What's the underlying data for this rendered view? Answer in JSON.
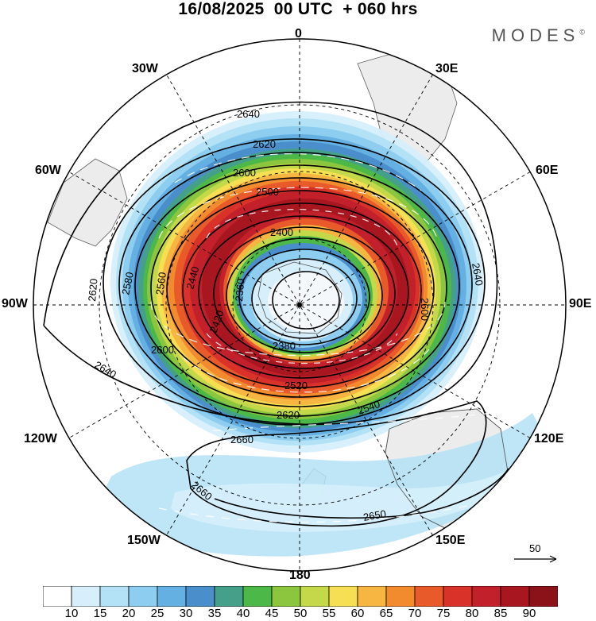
{
  "title": "16/08/2025  00 UTC  + 060 hrs",
  "brand": "MODES",
  "brand_mark": "©",
  "longitude_labels": {
    "lon_0": "0",
    "lon_30e": "30E",
    "lon_60e": "60E",
    "lon_90e": "90E",
    "lon_120e": "120E",
    "lon_150e": "150E",
    "lon_180": "180",
    "lon_150w": "150W",
    "lon_120w": "120W",
    "lon_90w": "90W",
    "lon_60w": "60W",
    "lon_30w": "30W"
  },
  "contour_labels": [
    "2640",
    "2620",
    "2600",
    "2580",
    "2560",
    "2540",
    "2520",
    "2500",
    "2440",
    "2420",
    "2400",
    "2380",
    "2360",
    "2660",
    "2650"
  ],
  "vector_reference": {
    "value": "50"
  },
  "colorbar": {
    "labels": [
      "10",
      "15",
      "20",
      "25",
      "30",
      "35",
      "40",
      "45",
      "50",
      "55",
      "60",
      "65",
      "70",
      "75",
      "80",
      "85",
      "90"
    ],
    "colors": [
      "#ffffff",
      "#d6effb",
      "#b3e2f6",
      "#8dcdef",
      "#65b0e2",
      "#4a8fcc",
      "#45a08a",
      "#4cb847",
      "#8cc63f",
      "#c3d94a",
      "#f6df52",
      "#f7b541",
      "#f28a2e",
      "#e85a2a",
      "#d93228",
      "#c2202a",
      "#a8161f",
      "#8c1219"
    ]
  },
  "color_scheme": {
    "land": "#ececec",
    "coast": "#606060",
    "grid": "#000000"
  }
}
